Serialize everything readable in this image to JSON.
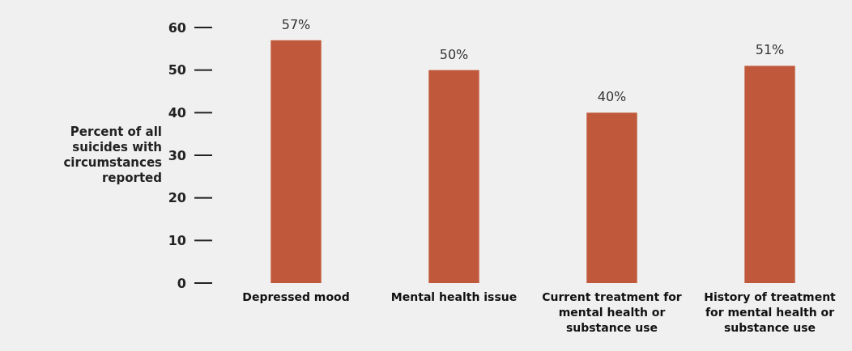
{
  "chart_data": {
    "type": "bar",
    "ylabel": "Percent of all suicides with circumstances reported",
    "categories": [
      "Depressed mood",
      "Mental health issue",
      "Current treatment for mental health or substance use",
      "History of treatment for mental health or substance use"
    ],
    "values": [
      57,
      50,
      40,
      51
    ],
    "value_labels": [
      "57%",
      "50%",
      "40%",
      "51%"
    ],
    "color": "#c0593b",
    "ylim": [
      0,
      60
    ],
    "yticks": [
      0,
      10,
      20,
      30,
      40,
      50,
      60
    ],
    "grid": false
  }
}
